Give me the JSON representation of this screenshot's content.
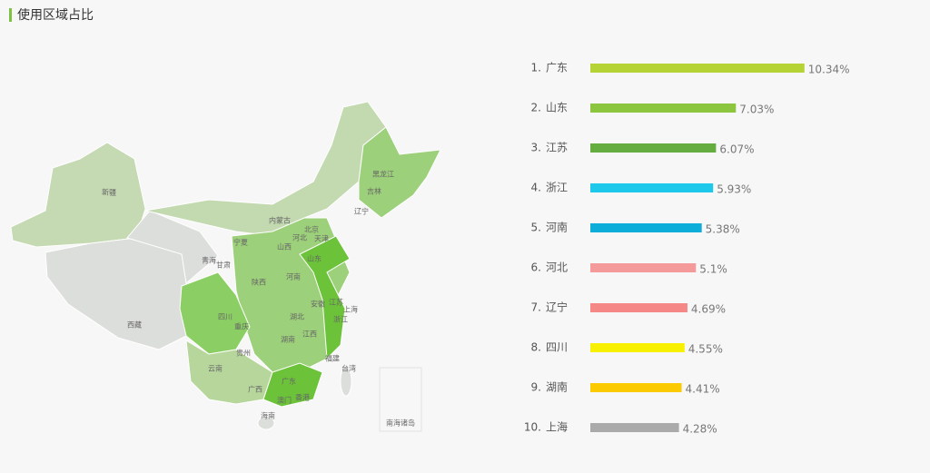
{
  "title": "使用区域占比",
  "map": {
    "labels": [
      "新疆",
      "西藏",
      "青海",
      "甘肃",
      "宁夏",
      "内蒙古",
      "黑龙江",
      "吉林",
      "辽宁",
      "北京",
      "天津",
      "河北",
      "山西",
      "山东",
      "河南",
      "陕西",
      "四川",
      "重庆",
      "湖北",
      "安徽",
      "江苏",
      "上海",
      "浙江",
      "江西",
      "湖南",
      "贵州",
      "云南",
      "广西",
      "广东",
      "福建",
      "台湾",
      "香港",
      "澳门",
      "海南",
      "南海诸岛"
    ]
  },
  "chart_data": {
    "type": "bar",
    "ranks": [
      "1.",
      "2.",
      "3.",
      "4.",
      "5.",
      "6.",
      "7.",
      "8.",
      "9.",
      "10."
    ],
    "categories": [
      "广东",
      "山东",
      "江苏",
      "浙江",
      "河南",
      "河北",
      "辽宁",
      "四川",
      "湖南",
      "上海"
    ],
    "values": [
      10.34,
      7.03,
      6.07,
      5.93,
      5.38,
      5.1,
      4.69,
      4.55,
      4.41,
      4.28
    ],
    "value_labels": [
      "10.34%",
      "7.03%",
      "6.07%",
      "5.93%",
      "5.38%",
      "5.1%",
      "4.69%",
      "4.55%",
      "4.41%",
      "4.28%"
    ],
    "colors": [
      "#b5d334",
      "#8cc63f",
      "#66ad41",
      "#1ec8ea",
      "#0cadd9",
      "#f59a9a",
      "#f58787",
      "#f7f000",
      "#fcca00",
      "#aaaaaa"
    ]
  }
}
